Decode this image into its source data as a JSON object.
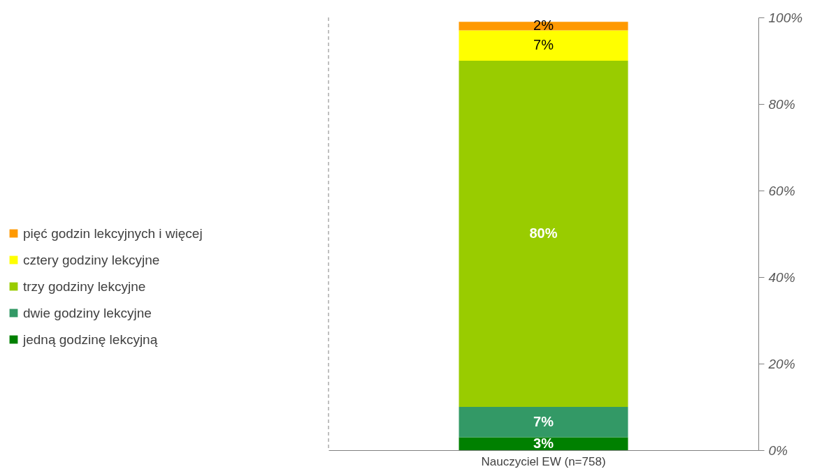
{
  "chart_data": {
    "type": "bar",
    "stacked": true,
    "categories": [
      "Nauczyciel EW (n=758)"
    ],
    "series": [
      {
        "name": "jedną godzinę lekcyjną",
        "color": "#008000",
        "values": [
          3
        ],
        "value_labels": [
          "3%"
        ]
      },
      {
        "name": "dwie godziny lekcyjne",
        "color": "#339966",
        "values": [
          7
        ],
        "value_labels": [
          "7%"
        ]
      },
      {
        "name": "trzy godziny lekcyjne",
        "color": "#99cc00",
        "values": [
          80
        ],
        "value_labels": [
          "80%"
        ]
      },
      {
        "name": "cztery godziny lekcyjne",
        "color": "#ffff00",
        "values": [
          7
        ],
        "value_labels": [
          "7%"
        ]
      },
      {
        "name": "pięć godzin lekcyjnych i więcej",
        "color": "#ff9900",
        "values": [
          2
        ],
        "value_labels": [
          "2%"
        ]
      }
    ],
    "ylim": [
      0,
      100
    ],
    "yticks": [
      {
        "value": 0,
        "label": "0%"
      },
      {
        "value": 20,
        "label": "20%"
      },
      {
        "value": 40,
        "label": "40%"
      },
      {
        "value": 60,
        "label": "60%"
      },
      {
        "value": 80,
        "label": "80%"
      },
      {
        "value": 100,
        "label": "100%"
      }
    ],
    "legend": "left",
    "grid": false
  }
}
